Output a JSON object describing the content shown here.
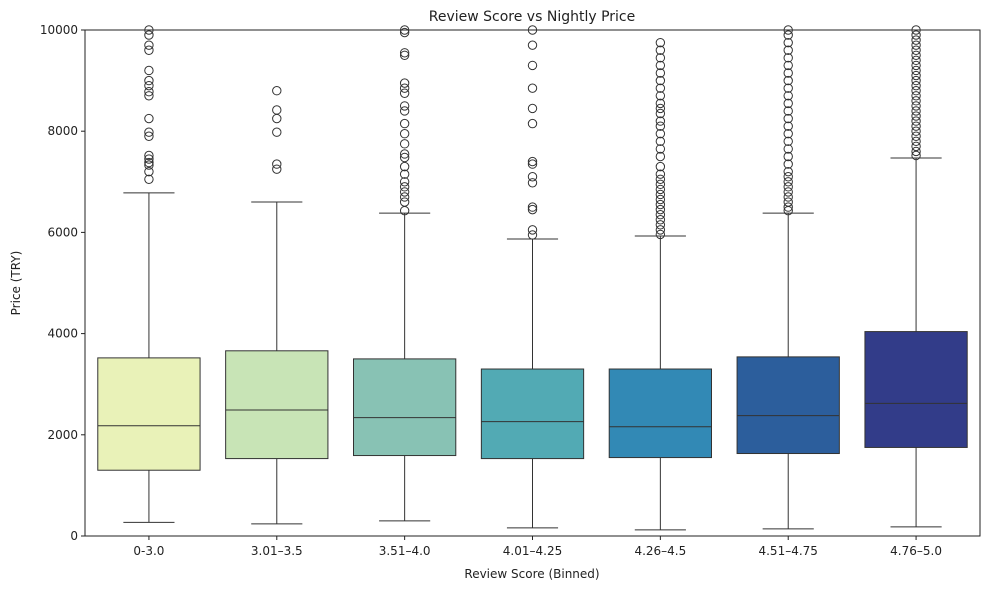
{
  "chart_data": {
    "type": "box",
    "title": "Review Score vs Nightly Price",
    "xlabel": "Review Score (Binned)",
    "ylabel": "Price (TRY)",
    "ylim": [
      0,
      10000
    ],
    "yticks": [
      0,
      2000,
      4000,
      6000,
      8000,
      10000
    ],
    "grid": false,
    "legend": "none",
    "categories": [
      "0-3.0",
      "3.01–3.5",
      "3.51–4.0",
      "4.01–4.25",
      "4.26–4.5",
      "4.51–4.75",
      "4.76–5.0"
    ],
    "boxes": [
      {
        "category": "0-3.0",
        "whisker_low": 270,
        "q1": 1300,
        "median": 2180,
        "q3": 3520,
        "whisker_high": 6780,
        "color": "#e9f2b8",
        "outliers": [
          7050,
          7200,
          7330,
          7380,
          7450,
          7520,
          7900,
          7980,
          8250,
          8700,
          8780,
          8900,
          9000,
          9200,
          9600,
          9700,
          9900,
          10000
        ]
      },
      {
        "category": "3.01–3.5",
        "whisker_low": 240,
        "q1": 1530,
        "median": 2490,
        "q3": 3660,
        "whisker_high": 6600,
        "color": "#c8e4b6",
        "outliers": [
          7250,
          7350,
          7980,
          8250,
          8420,
          8800
        ]
      },
      {
        "category": "3.51–4.0",
        "whisker_low": 300,
        "q1": 1590,
        "median": 2340,
        "q3": 3500,
        "whisker_high": 6380,
        "color": "#88c2b4",
        "outliers": [
          6430,
          6600,
          6700,
          6800,
          6900,
          7000,
          7150,
          7300,
          7480,
          7550,
          7750,
          7950,
          8150,
          8400,
          8500,
          8750,
          8850,
          8950,
          9500,
          9550,
          9950,
          10000
        ]
      },
      {
        "category": "4.01–4.25",
        "whisker_low": 160,
        "q1": 1530,
        "median": 2260,
        "q3": 3300,
        "whisker_high": 5870,
        "color": "#52aab4",
        "outliers": [
          5950,
          6050,
          6450,
          6500,
          6980,
          7100,
          7350,
          7400,
          8150,
          8450,
          8850,
          9300,
          9700,
          10000
        ]
      },
      {
        "category": "4.26–4.5",
        "whisker_low": 120,
        "q1": 1550,
        "median": 2160,
        "q3": 3300,
        "whisker_high": 5930,
        "color": "#3289b5",
        "outliers": [
          5960,
          6050,
          6150,
          6250,
          6350,
          6450,
          6550,
          6650,
          6750,
          6850,
          6950,
          7050,
          7150,
          7300,
          7500,
          7650,
          7800,
          7950,
          8100,
          8200,
          8350,
          8450,
          8550,
          8700,
          8850,
          9000,
          9150,
          9300,
          9450,
          9600,
          9750
        ]
      },
      {
        "category": "4.51–4.75",
        "whisker_low": 140,
        "q1": 1630,
        "median": 2380,
        "q3": 3540,
        "whisker_high": 6380,
        "color": "#2c5e9c",
        "outliers": [
          6430,
          6500,
          6600,
          6700,
          6800,
          6900,
          7000,
          7100,
          7200,
          7350,
          7500,
          7650,
          7800,
          7950,
          8100,
          8250,
          8400,
          8550,
          8700,
          8850,
          9000,
          9150,
          9300,
          9450,
          9600,
          9750,
          9900,
          10000
        ]
      },
      {
        "category": "4.76–5.0",
        "whisker_low": 180,
        "q1": 1750,
        "median": 2620,
        "q3": 4040,
        "whisker_high": 7470,
        "color": "#323c89",
        "outliers": [
          7520,
          7600,
          7700,
          7800,
          7900,
          8000,
          8100,
          8200,
          8300,
          8400,
          8500,
          8600,
          8700,
          8800,
          8900,
          9000,
          9100,
          9200,
          9300,
          9400,
          9500,
          9600,
          9700,
          9800,
          9900,
          10000
        ]
      }
    ]
  }
}
